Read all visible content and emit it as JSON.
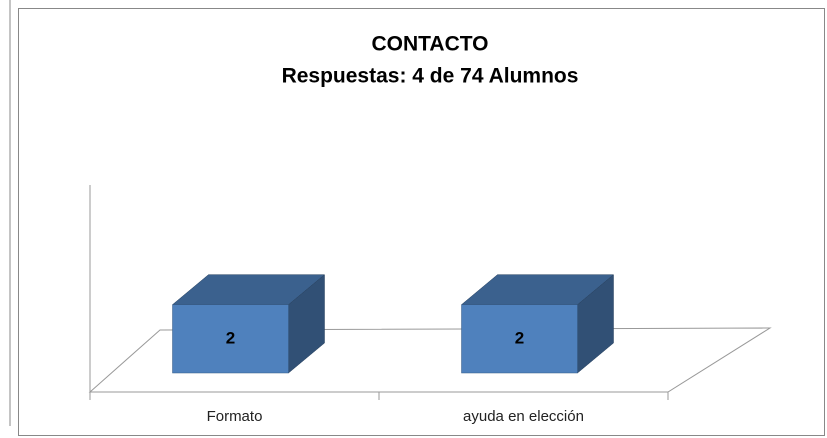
{
  "chart_data": {
    "type": "bar3d",
    "title": "CONTACTO",
    "subtitle": "Respuestas: 4 de 74 Alumnos",
    "categories": [
      "Formato",
      "ayuda en elección"
    ],
    "values": [
      2,
      2
    ],
    "color": "#4f81bd",
    "ylim": [
      0,
      6
    ],
    "grid": false
  }
}
